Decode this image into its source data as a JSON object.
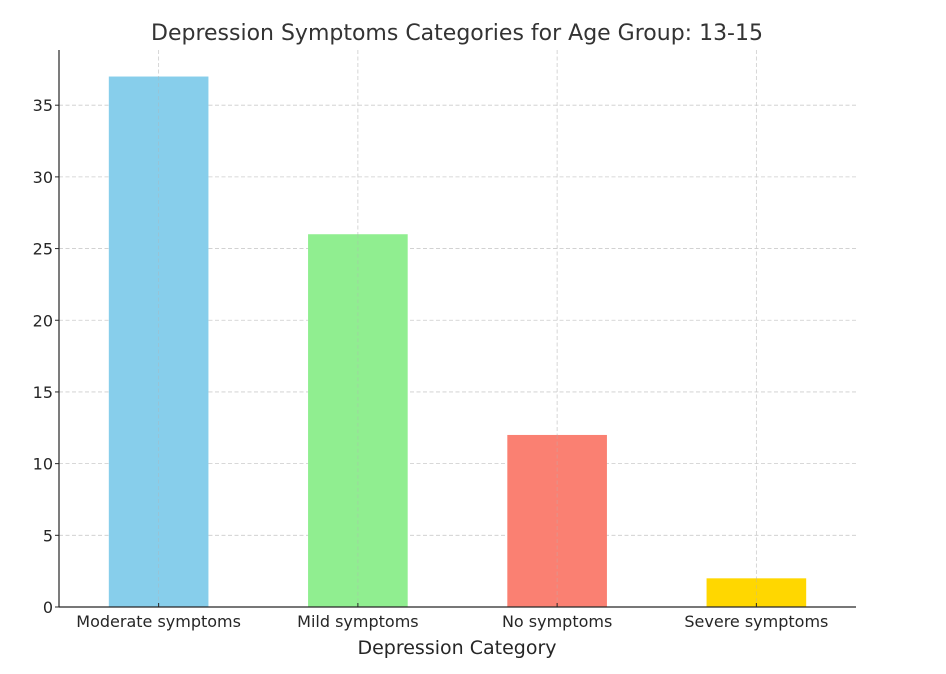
{
  "chart_data": {
    "type": "bar",
    "title": "Depression Symptoms Categories for Age Group: 13-15",
    "xlabel": "Depression Category",
    "ylabel": "",
    "categories": [
      "Moderate symptoms",
      "Mild symptoms",
      "No symptoms",
      "Severe symptoms"
    ],
    "values": [
      37,
      26,
      12,
      2
    ],
    "colors": [
      "#87ceeb",
      "#90ee90",
      "#fa8072",
      "#ffd700"
    ],
    "ylim": [
      0,
      38.85
    ],
    "yticks": [
      0,
      5,
      10,
      15,
      20,
      25,
      30,
      35
    ],
    "grid": true,
    "legend": "none"
  }
}
